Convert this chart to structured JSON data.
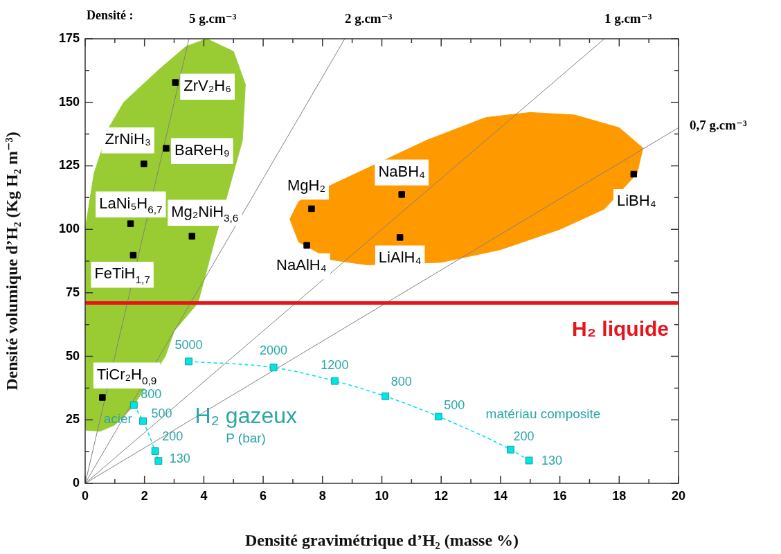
{
  "chart_data": {
    "type": "scatter",
    "xlabel": "Densité gravimétrique d’H₂ (masse %)",
    "ylabel": "Densité volumique d’H₂ (Kg H₂ m⁻³)",
    "xlim": [
      0,
      20
    ],
    "xticks": [
      0,
      {
        "value": 1,
        "label": null
      },
      2,
      {
        "value": 3,
        "label": null
      },
      4,
      {
        "value": 5,
        "label": null
      },
      6,
      {
        "value": 7,
        "label": null
      },
      8,
      {
        "value": 9,
        "label": null
      },
      10,
      {
        "value": 11,
        "label": null
      },
      12,
      {
        "value": 13,
        "label": null
      },
      14,
      {
        "value": 15,
        "label": null
      },
      16,
      {
        "value": 17,
        "label": null
      },
      18,
      {
        "value": 19,
        "label": null
      },
      20
    ],
    "ylim": [
      0,
      175
    ],
    "yticks": [
      0,
      {
        "value": 12.5,
        "label": null
      },
      25,
      {
        "value": 37.5,
        "label": null
      },
      50,
      {
        "value": 62.5,
        "label": null
      },
      75,
      {
        "value": 87.5,
        "label": null
      },
      100,
      {
        "value": 112.5,
        "label": null
      },
      125,
      {
        "value": 137.5,
        "label": null
      },
      150,
      {
        "value": 162.5,
        "label": null
      },
      175
    ],
    "marker": "square",
    "series": [
      {
        "type": "area",
        "color": "#99cc33",
        "marker": "none",
        "x": [
          0,
          0.5,
          1.0,
          1.6,
          2.7,
          3.0,
          3.8,
          4.35,
          5.3,
          5.4,
          5.0,
          4.1,
          3.4,
          2.5,
          1.3,
          0.8,
          0.3,
          0,
          0
        ],
        "values": [
          21,
          20.5,
          23,
          30,
          50,
          60,
          71,
          95,
          135,
          157,
          170,
          175,
          172,
          163,
          150,
          140,
          122,
          100,
          21
        ]
      },
      {
        "type": "area",
        "color": "#ff9900",
        "marker": "none",
        "x": [
          6.9,
          7.2,
          8.4,
          9.5,
          11.5,
          13.5,
          15.0,
          16.5,
          18.0,
          18.8,
          18.6,
          17.5,
          16.0,
          14.0,
          12.0,
          9.5,
          8.3,
          7.2,
          6.9
        ],
        "values": [
          104,
          111,
          118,
          124,
          135,
          144,
          146,
          145,
          140,
          132,
          122,
          108,
          100,
          92,
          87,
          86,
          88,
          95,
          104
        ]
      },
      {
        "type": "line",
        "name": "5 g.cm⁻³",
        "color": "#808080",
        "marker": "none",
        "x": [
          0,
          3.5
        ],
        "values": [
          0,
          175
        ]
      },
      {
        "type": "line",
        "name": "2 g.cm⁻³",
        "color": "#808080",
        "marker": "none",
        "x": [
          0,
          8.75
        ],
        "values": [
          0,
          175
        ]
      },
      {
        "type": "line",
        "name": "1 g.cm⁻³",
        "color": "#808080",
        "marker": "none",
        "x": [
          0,
          17.5
        ],
        "values": [
          0,
          175
        ]
      },
      {
        "type": "line",
        "name": "0,7 g.cm⁻³",
        "color": "#808080",
        "marker": "none",
        "x": [
          0,
          20
        ],
        "values": [
          0,
          140
        ]
      },
      {
        "color": "#000000",
        "x": [
          3.04,
          1.98,
          2.73,
          1.53,
          1.62,
          3.6,
          0.58,
          7.63,
          7.47,
          10.67,
          10.61,
          18.49
        ],
        "values": [
          157.8,
          125.8,
          131.9,
          102.2,
          89.8,
          97.3,
          33.8,
          108.1,
          93.7,
          113.7,
          96.8,
          121.7
        ]
      },
      {
        "type": "line",
        "name": "matériau composite",
        "color": "#00e5e5",
        "line_style": "dashed",
        "x": [
          3.49,
          6.35,
          8.41,
          10.12,
          11.91,
          14.34,
          14.96
        ],
        "values": [
          48.0,
          45.6,
          40.3,
          34.3,
          26.3,
          13.3,
          9.0
        ]
      },
      {
        "type": "line",
        "name": "acier",
        "color": "#00e5e5",
        "line_style": "dashed",
        "x": [
          1.64,
          1.95,
          2.36,
          2.47
        ],
        "values": [
          30.8,
          24.5,
          12.7,
          8.8
        ]
      }
    ],
    "ref_lines": [
      {
        "axis": "y",
        "value": 71,
        "label": "H₂ liquide",
        "color": "#e8141b"
      }
    ],
    "annotations": [
      {
        "text": "ZrV₂H₆",
        "x": 3.04,
        "y": 157.8
      },
      {
        "text": "ZrNiH₃",
        "x": 1.98,
        "y": 125.8
      },
      {
        "text": "BaReH₉",
        "x": 2.73,
        "y": 131.9
      },
      {
        "text": "LaNi₅H$_{6,7}$",
        "x": 1.53,
        "y": 102.2
      },
      {
        "text": "FeTiH$_{1,7}$",
        "x": 1.62,
        "y": 89.8
      },
      {
        "text": "Mg₂NiH$_{3,6}$",
        "x": 3.6,
        "y": 97.3
      },
      {
        "text": "TiCr₂H$_{0,9}$",
        "x": 0.58,
        "y": 33.8
      },
      {
        "text": "MgH₂",
        "x": 7.63,
        "y": 108.1
      },
      {
        "text": "NaAlH₄",
        "x": 7.47,
        "y": 93.7
      },
      {
        "text": "NaBH₄",
        "x": 10.67,
        "y": 113.7
      },
      {
        "text": "LiAlH₄",
        "x": 10.61,
        "y": 96.8
      },
      {
        "text": "LiBH₄",
        "x": 18.49,
        "y": 121.7
      },
      {
        "text": "5000",
        "x": 3.49,
        "y": 48.0
      },
      {
        "text": "2000",
        "x": 6.35,
        "y": 45.6
      },
      {
        "text": "1200",
        "x": 8.41,
        "y": 40.3
      },
      {
        "text": "800",
        "x": 10.12,
        "y": 34.3
      },
      {
        "text": "500",
        "x": 11.91,
        "y": 26.3
      },
      {
        "text": "200",
        "x": 14.34,
        "y": 13.3
      },
      {
        "text": "130",
        "x": 14.96,
        "y": 9.0
      },
      {
        "text": "800",
        "x": 1.64,
        "y": 30.8
      },
      {
        "text": "500",
        "x": 1.95,
        "y": 24.5
      },
      {
        "text": "200",
        "x": 2.36,
        "y": 12.7
      },
      {
        "text": "130",
        "x": 2.47,
        "y": 8.8
      },
      "H₂ gazeux",
      "P (bar)",
      "Densité :"
    ]
  }
}
